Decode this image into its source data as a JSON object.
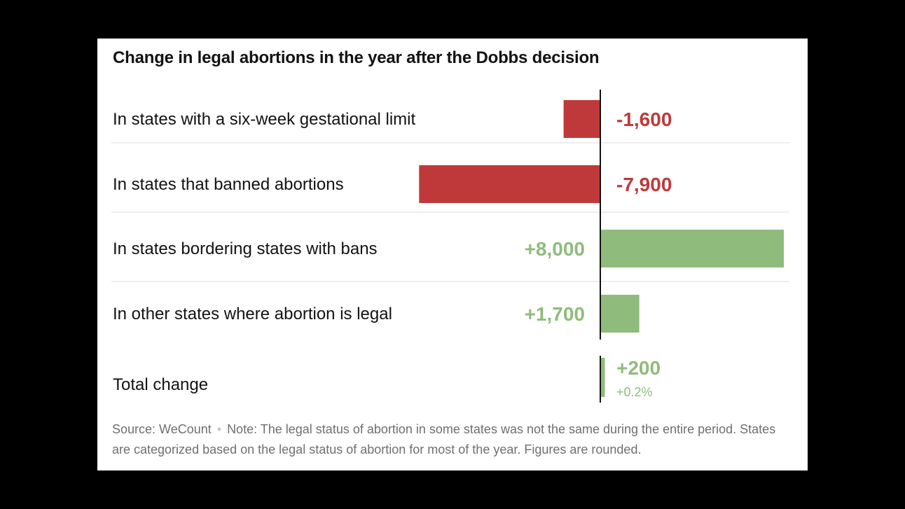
{
  "chart_data": {
    "type": "bar",
    "orientation": "horizontal",
    "title": "Change in legal abortions in the year after the Dobbs decision",
    "categories": [
      "In states with a six-week gestational limit",
      "In states that banned abortions",
      "In states bordering states with bans",
      "In other states where abortion is legal"
    ],
    "values": [
      -1600,
      -7900,
      8000,
      1700
    ],
    "value_labels": [
      "-1,600",
      "-7,900",
      "+8,000",
      "+1,700"
    ],
    "total": {
      "label": "Total change",
      "value": 200,
      "value_label": "+200",
      "percent_label": "+0.2%"
    },
    "xlim": [
      -9000,
      9000
    ],
    "grid": false,
    "legend": "none"
  },
  "colors": {
    "negative": "#c0393a",
    "positive": "#8fbc7c",
    "axis": "#121212",
    "divider": "#dcdcdc"
  },
  "footnote": {
    "source": "Source: WeCount",
    "separator": "•",
    "note": "Note: The legal status of abortion in some states was not the same during the entire period. States are categorized based on the legal status of abortion for most of the year. Figures are rounded."
  }
}
